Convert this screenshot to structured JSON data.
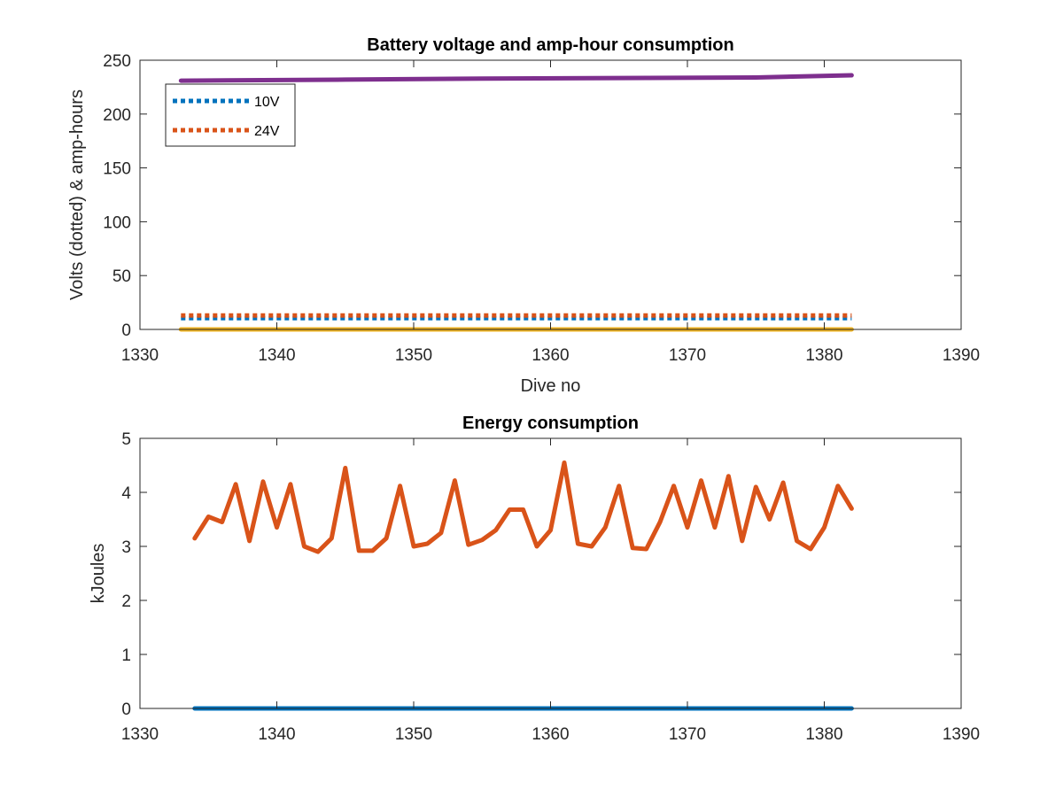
{
  "chart_data": [
    {
      "type": "line",
      "title": "Battery voltage and amp-hour consumption",
      "xlabel": "Dive no",
      "ylabel": "Volts (dotted) & amp-hours",
      "xlim": [
        1330,
        1390
      ],
      "ylim": [
        0,
        250
      ],
      "xticks": [
        1330,
        1340,
        1350,
        1360,
        1370,
        1380,
        1390
      ],
      "yticks": [
        0,
        50,
        100,
        150,
        200,
        250
      ],
      "grid": false,
      "legend": {
        "placement": "top-left",
        "entries": [
          "10V",
          "24V"
        ]
      },
      "series": [
        {
          "name": "10V",
          "style": "dotted",
          "color": "#0072BD",
          "x": [
            1333,
            1382
          ],
          "y": [
            10.5,
            10.5
          ]
        },
        {
          "name": "24V",
          "style": "dotted",
          "color": "#D95319",
          "x": [
            1333,
            1382
          ],
          "y": [
            13,
            13
          ]
        },
        {
          "style": "solid",
          "color": "#EDB120",
          "x": [
            1333,
            1382
          ],
          "y": [
            0,
            0
          ]
        },
        {
          "style": "solid",
          "color": "#7E2F8E",
          "x": [
            1333,
            1345,
            1355,
            1365,
            1375,
            1382
          ],
          "y": [
            231,
            232,
            233,
            233.5,
            234,
            236
          ]
        }
      ]
    },
    {
      "type": "line",
      "title": "Energy consumption",
      "xlabel": "",
      "ylabel": "kJoules",
      "xlim": [
        1330,
        1390
      ],
      "ylim": [
        0,
        5
      ],
      "xticks": [
        1330,
        1340,
        1350,
        1360,
        1370,
        1380,
        1390
      ],
      "yticks": [
        0,
        1,
        2,
        3,
        4,
        5
      ],
      "grid": false,
      "series": [
        {
          "style": "solid",
          "color": "#0072BD",
          "x": [
            1334,
            1382
          ],
          "y": [
            0,
            0
          ]
        },
        {
          "style": "solid",
          "color": "#D95319",
          "x": [
            1334,
            1335,
            1336,
            1337,
            1338,
            1339,
            1340,
            1341,
            1342,
            1343,
            1344,
            1345,
            1346,
            1347,
            1348,
            1349,
            1350,
            1351,
            1352,
            1353,
            1354,
            1355,
            1356,
            1357,
            1358,
            1359,
            1360,
            1361,
            1362,
            1363,
            1364,
            1365,
            1366,
            1367,
            1368,
            1369,
            1370,
            1371,
            1372,
            1373,
            1374,
            1375,
            1376,
            1377,
            1378,
            1379,
            1380,
            1381,
            1382
          ],
          "y": [
            3.15,
            3.55,
            3.45,
            4.15,
            3.1,
            4.2,
            3.35,
            4.15,
            3.0,
            2.9,
            3.15,
            4.45,
            2.92,
            2.92,
            3.15,
            4.12,
            3.0,
            3.05,
            3.25,
            4.22,
            3.03,
            3.12,
            3.3,
            3.68,
            3.68,
            3.0,
            3.3,
            4.55,
            3.05,
            3.0,
            3.35,
            4.12,
            2.97,
            2.95,
            3.45,
            4.12,
            3.35,
            4.22,
            3.35,
            4.3,
            3.1,
            4.1,
            3.5,
            4.18,
            3.1,
            2.95,
            3.35,
            4.12,
            3.7
          ]
        }
      ]
    }
  ]
}
